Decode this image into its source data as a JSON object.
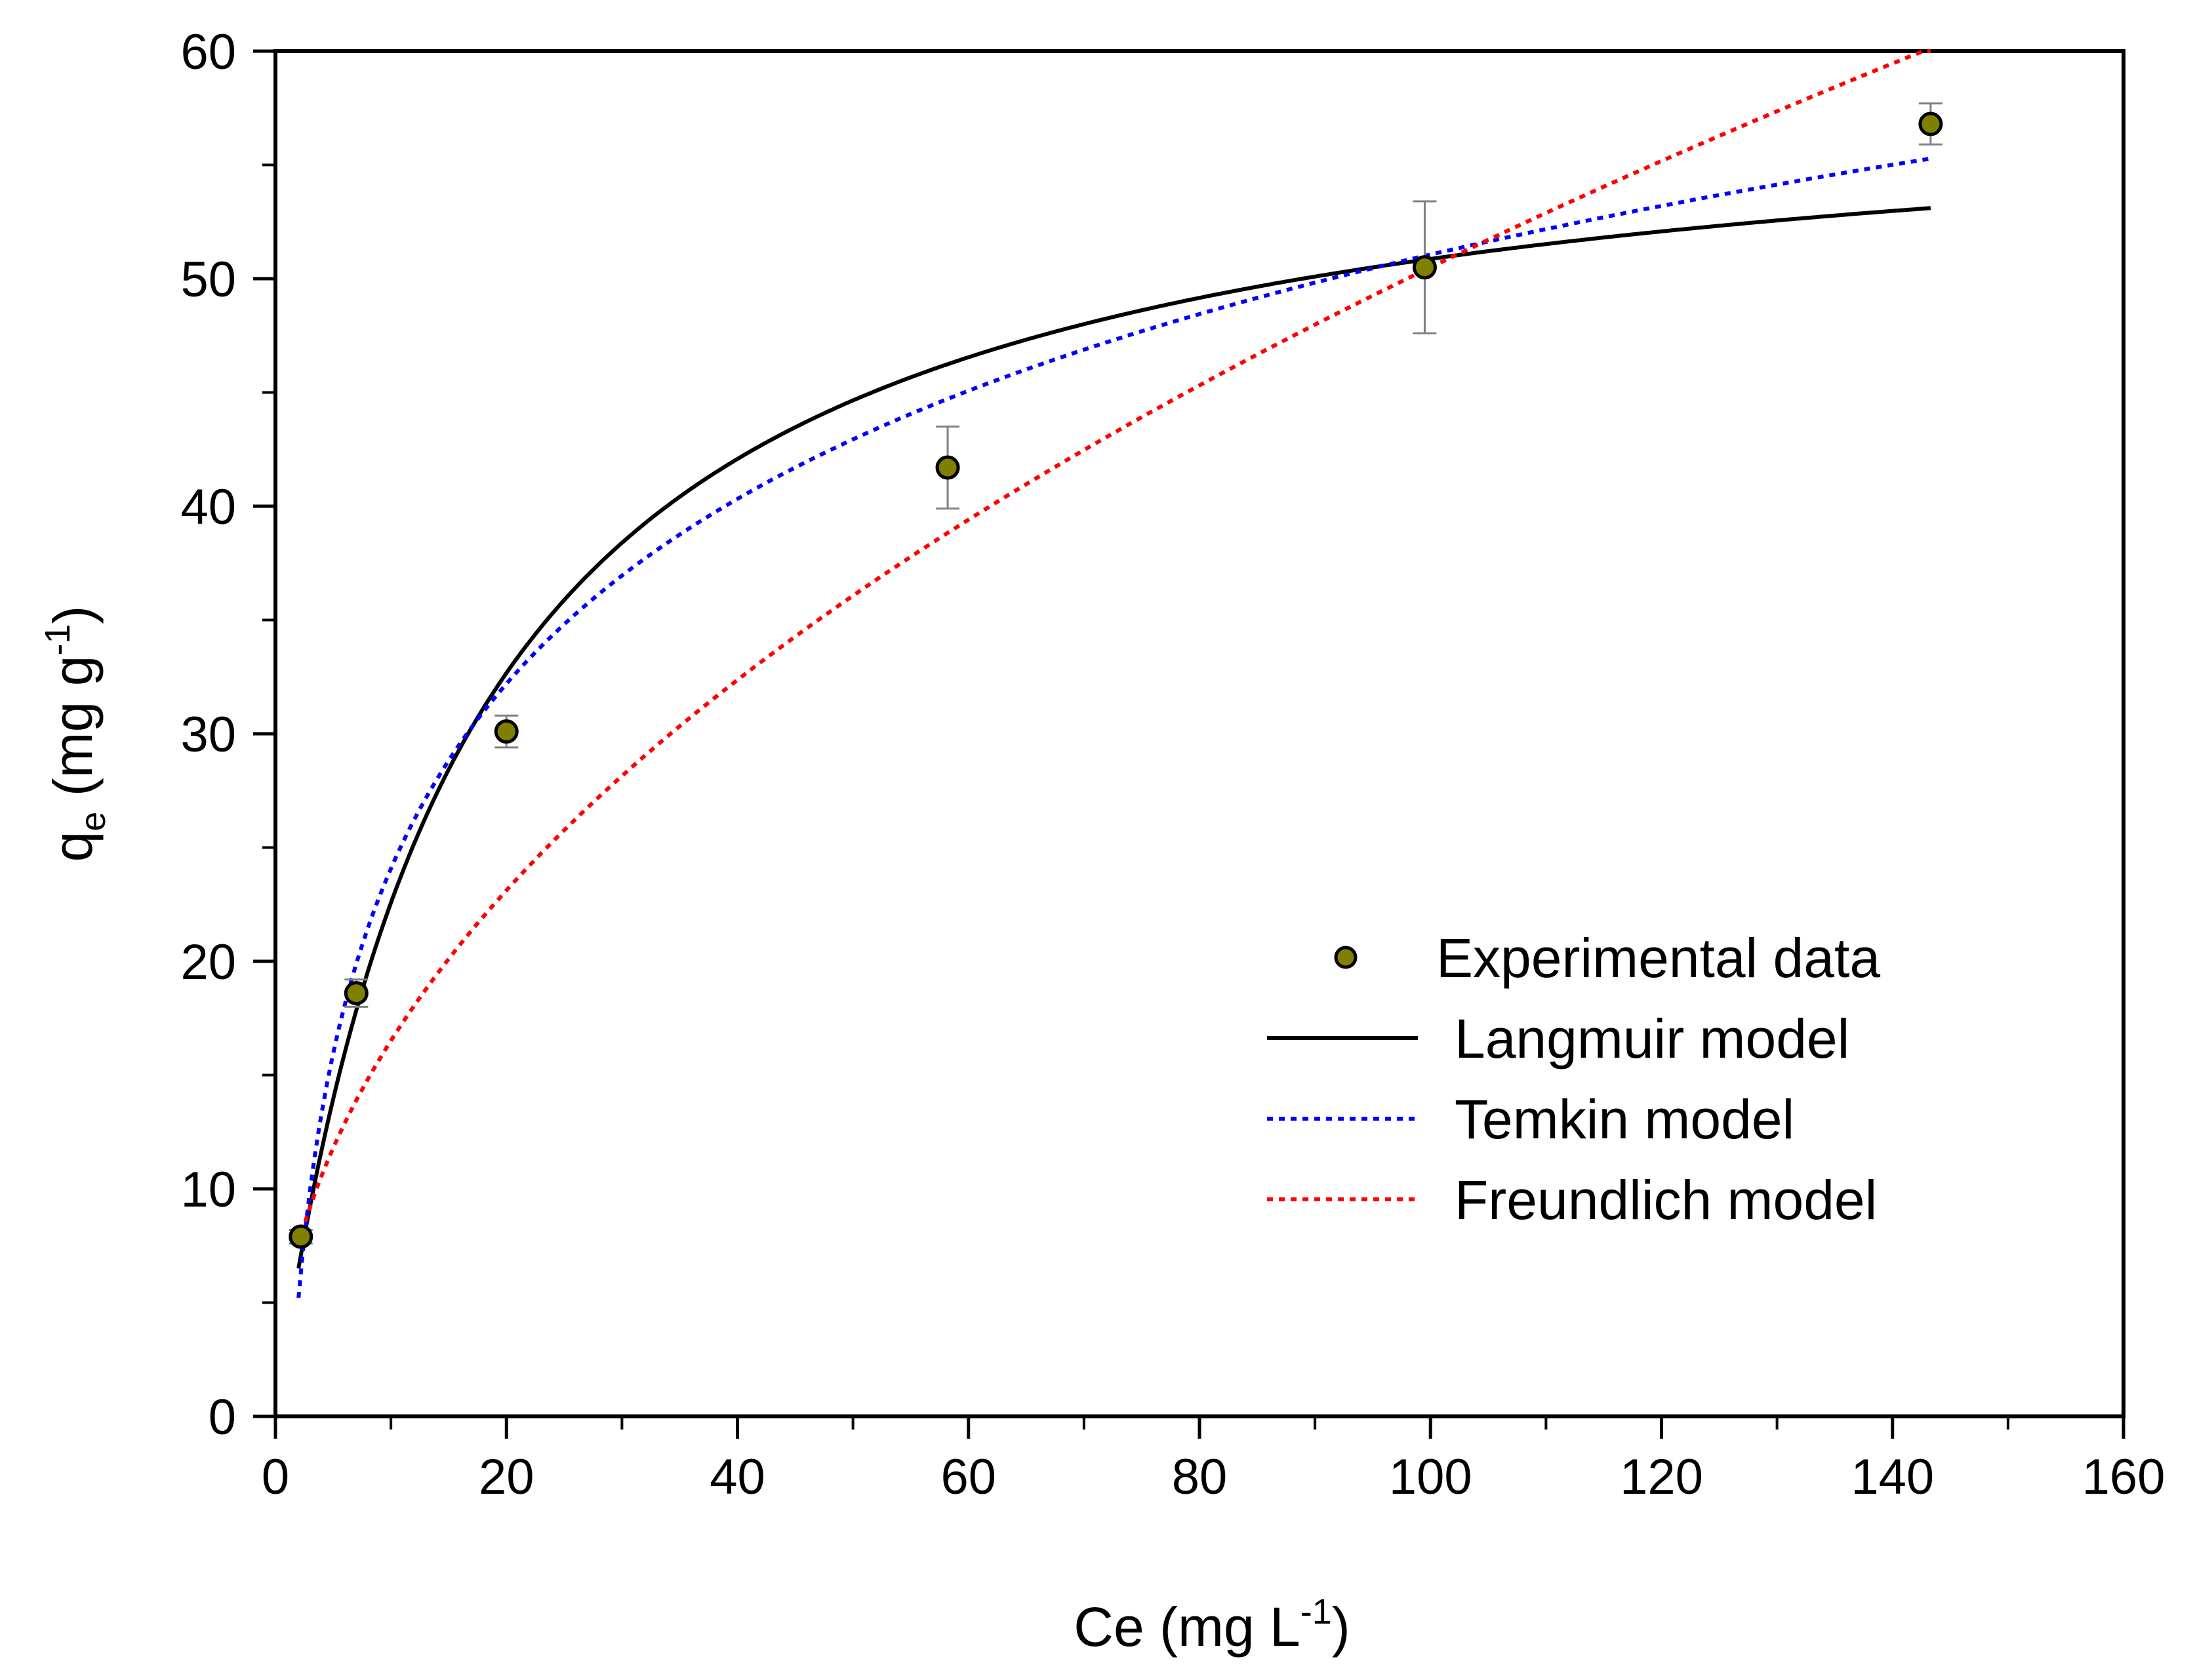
{
  "chart_data": {
    "type": "scatter",
    "title": "",
    "xlabel": {
      "main": "Ce (mg L",
      "sup": "-1",
      "close": ")"
    },
    "ylabel": {
      "main": "q",
      "sub": "e",
      "unit": " (mg g",
      "sup": "-1",
      "close": ")"
    },
    "xlim": [
      0,
      160
    ],
    "ylim": [
      0,
      60
    ],
    "x_ticks": [
      0,
      20,
      40,
      60,
      80,
      100,
      120,
      140,
      160
    ],
    "y_ticks": [
      0,
      10,
      20,
      30,
      40,
      50,
      60
    ],
    "x_tick_labels": [
      "0",
      "20",
      "40",
      "60",
      "80",
      "100",
      "120",
      "140",
      "160"
    ],
    "y_tick_labels": [
      "0",
      "10",
      "20",
      "30",
      "40",
      "50",
      "60"
    ],
    "minor_ticks_per_major": 1,
    "grid": false,
    "legend_position": "bottom-right",
    "series": [
      {
        "name": "Experimental data",
        "kind": "scatter",
        "color": "#808000",
        "edge_color": "#000000",
        "errorbar_color": "#808080",
        "x": [
          2.2,
          7.0,
          20.0,
          58.2,
          99.5,
          143.3
        ],
        "y": [
          7.9,
          18.6,
          30.1,
          41.7,
          50.5,
          56.8
        ],
        "error": [
          0.3,
          0.6,
          0.7,
          1.8,
          2.9,
          0.9
        ]
      },
      {
        "name": "Langmuir model",
        "kind": "line",
        "style": "solid",
        "color": "#000000",
        "model": "langmuir",
        "params": {
          "qmax": 59.1,
          "KL": 0.0618
        },
        "x_range": [
          2,
          143.3
        ]
      },
      {
        "name": "Temkin model",
        "kind": "line",
        "style": "dotted",
        "color": "#0000ff",
        "model": "temkin",
        "params": {
          "B": 11.72,
          "KT": 0.78
        },
        "x_range": [
          2,
          143.3
        ]
      },
      {
        "name": "Freundlich model",
        "kind": "line",
        "style": "dotted",
        "color": "#ff0000",
        "model": "freundlich",
        "params": {
          "KF": 5.4,
          "n": 2.06
        },
        "x_range": [
          2,
          143.3
        ]
      }
    ]
  }
}
